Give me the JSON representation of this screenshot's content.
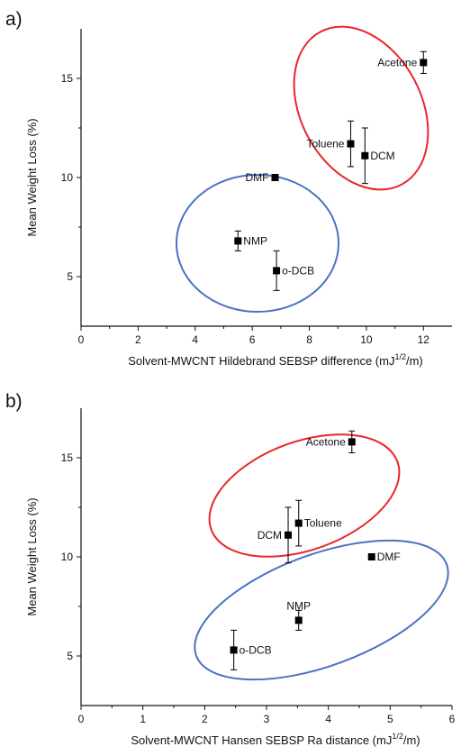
{
  "chart_data": [
    {
      "type": "scatter",
      "panel_label": "a)",
      "xlabel": "Solvent-MWCNT Hildebrand SEBSP difference (mJ",
      "xlabel_sup": "1/2",
      "xlabel_end": "/m)",
      "ylabel": "Mean Weight Loss (%)",
      "xlim": [
        0,
        13
      ],
      "ylim": [
        2.5,
        17.5
      ],
      "xticks": [
        0,
        2,
        4,
        6,
        8,
        10,
        12
      ],
      "yticks": [
        5,
        10,
        15
      ],
      "points": [
        {
          "label": "Acetone",
          "x": 12.0,
          "y": 15.8,
          "err": 0.55,
          "label_side": "left"
        },
        {
          "label": "Toluene",
          "x": 9.45,
          "y": 11.7,
          "err": 1.15,
          "label_side": "left"
        },
        {
          "label": "DCM",
          "x": 9.95,
          "y": 11.1,
          "err": 1.4,
          "label_side": "right"
        },
        {
          "label": "DMF",
          "x": 6.8,
          "y": 10.0,
          "err": 0.15,
          "label_side": "left"
        },
        {
          "label": "NMP",
          "x": 5.5,
          "y": 6.8,
          "err": 0.5,
          "label_side": "right"
        },
        {
          "label": "o-DCB",
          "x": 6.85,
          "y": 5.3,
          "err": 1.0,
          "label_side": "right"
        }
      ],
      "groups": [
        {
          "color": "#e8262b",
          "members": [
            "Acetone",
            "Toluene",
            "DCM"
          ]
        },
        {
          "color": "#4a72c4",
          "members": [
            "DMF",
            "NMP",
            "o-DCB"
          ]
        }
      ]
    },
    {
      "type": "scatter",
      "panel_label": "b)",
      "xlabel": "Solvent-MWCNT Hansen SEBSP Ra distance (mJ",
      "xlabel_sup": "1/2",
      "xlabel_end": "/m)",
      "ylabel": "Mean Weight Loss (%)",
      "xlim": [
        0,
        6
      ],
      "ylim": [
        2.5,
        17.5
      ],
      "xticks": [
        0,
        1,
        2,
        3,
        4,
        5,
        6
      ],
      "yticks": [
        5,
        10,
        15
      ],
      "points": [
        {
          "label": "Acetone",
          "x": 4.38,
          "y": 15.8,
          "err": 0.55,
          "label_side": "left"
        },
        {
          "label": "DCM",
          "x": 3.35,
          "y": 11.1,
          "err": 1.4,
          "label_side": "left"
        },
        {
          "label": "Toluene",
          "x": 3.52,
          "y": 11.7,
          "err": 1.15,
          "label_side": "right"
        },
        {
          "label": "DMF",
          "x": 4.7,
          "y": 10.0,
          "err": 0.15,
          "label_side": "right"
        },
        {
          "label": "NMP",
          "x": 3.52,
          "y": 6.8,
          "err": 0.5,
          "label_side": "above"
        },
        {
          "label": "o-DCB",
          "x": 2.47,
          "y": 5.3,
          "err": 1.0,
          "label_side": "right"
        }
      ],
      "groups": [
        {
          "color": "#e8262b",
          "members": [
            "Acetone",
            "DCM",
            "Toluene"
          ]
        },
        {
          "color": "#4a72c4",
          "members": [
            "DMF",
            "NMP",
            "o-DCB"
          ]
        }
      ]
    }
  ]
}
